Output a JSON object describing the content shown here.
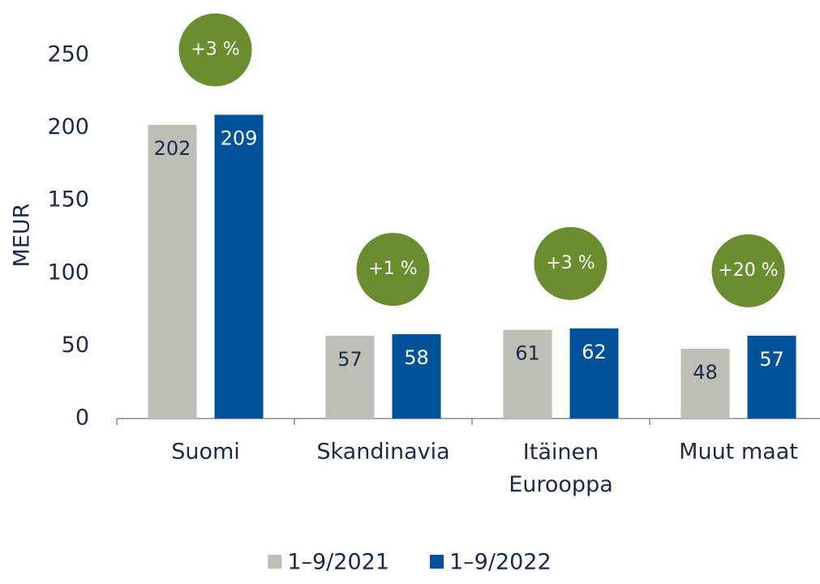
{
  "chart_data": {
    "type": "bar",
    "y_label": "MEUR",
    "categories": [
      "Suomi",
      "Skandinavia",
      "Itäinen Eurooppa",
      "Muut maat"
    ],
    "series": [
      {
        "name": "1–9/2021",
        "color": "#bebdb6",
        "values": [
          202,
          57,
          61,
          48
        ]
      },
      {
        "name": "1–9/2022",
        "color": "#00529b",
        "values": [
          209,
          58,
          62,
          57
        ]
      }
    ],
    "annotations": [
      "+3 %",
      "+1 %",
      "+3 %",
      "+20 %"
    ],
    "annotation_color": "#6a8d2f",
    "ylim": [
      0,
      250
    ],
    "yticks": [
      0,
      50,
      100,
      150,
      200,
      250
    ],
    "grid": false,
    "legend": "bottom"
  }
}
